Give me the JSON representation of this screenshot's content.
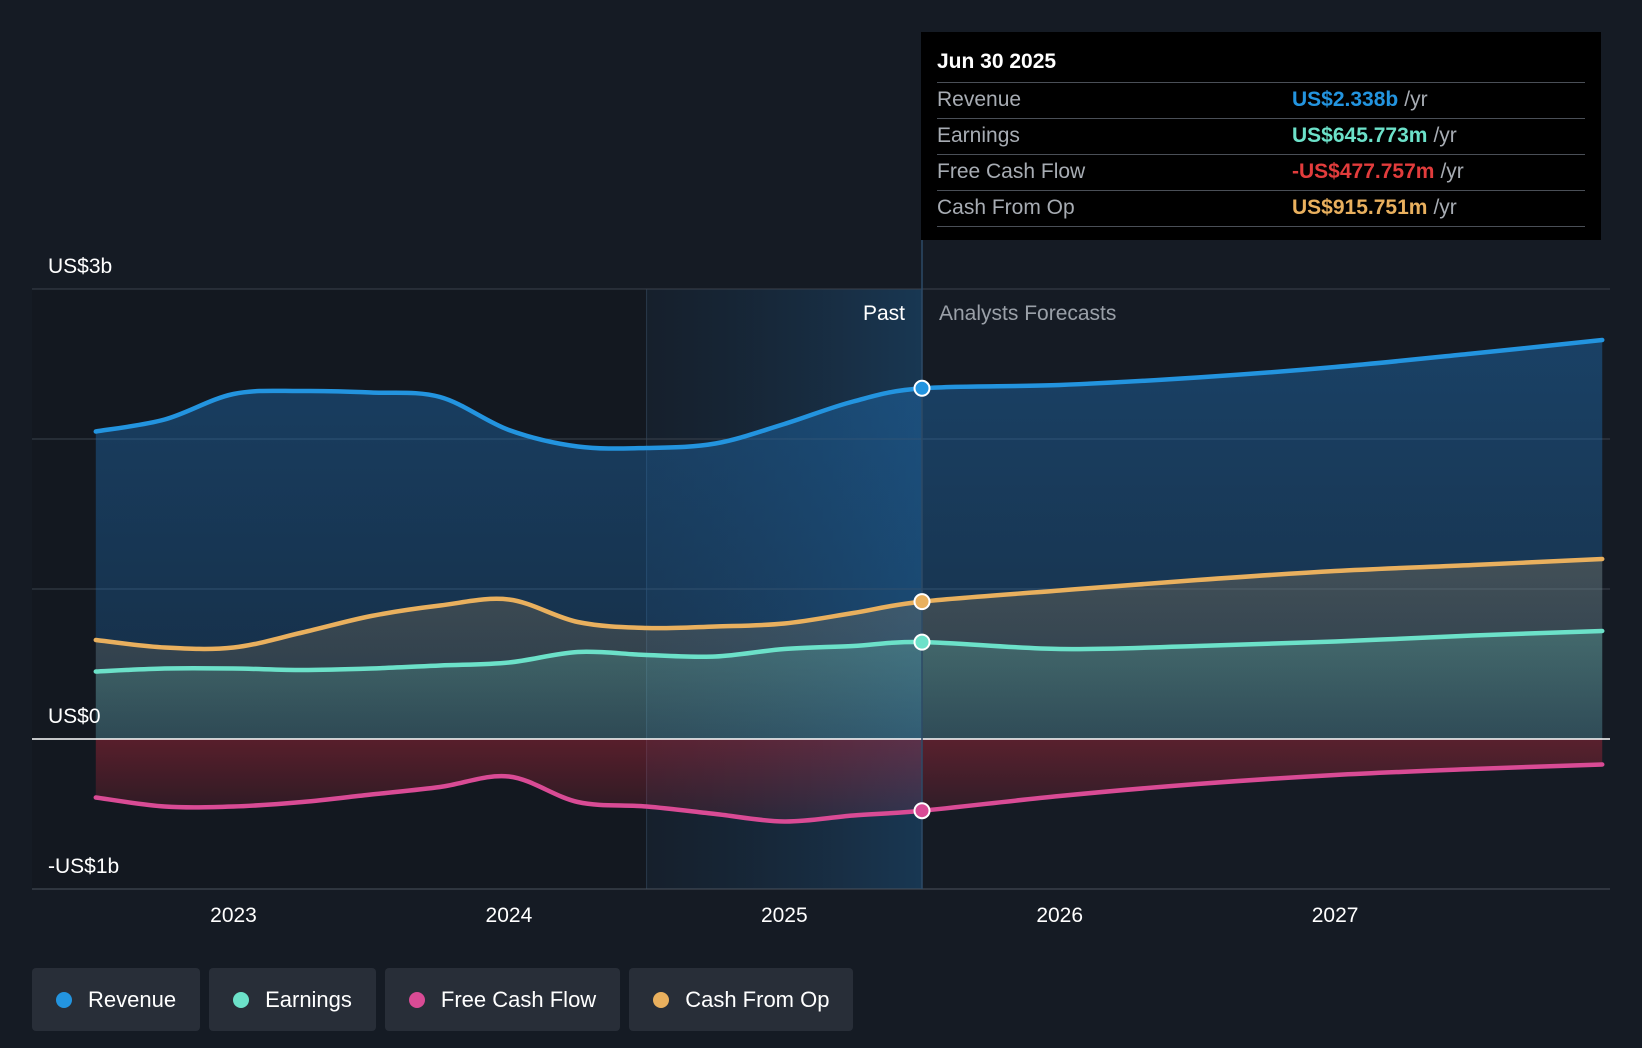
{
  "chart_data": {
    "type": "area",
    "x_unit": "year",
    "y_unit": "US$ billions",
    "ylim": [
      -1,
      3
    ],
    "xlim": [
      2022.5,
      2027.97
    ],
    "y_tick_values": [
      3,
      0,
      -1
    ],
    "y_tick_labels": [
      "US$3b",
      "US$0",
      "-US$1b"
    ],
    "x_ticks": [
      {
        "value": 2023,
        "label": "2023"
      },
      {
        "value": 2024,
        "label": "2024"
      },
      {
        "value": 2025,
        "label": "2025"
      },
      {
        "value": 2026,
        "label": "2026"
      },
      {
        "value": 2027,
        "label": "2027"
      }
    ],
    "past_label": "Past",
    "forecast_label": "Analysts Forecasts",
    "divider_x": 2025.5,
    "highlight_start_x": 2024.5,
    "grid": true,
    "legend_position": "bottom",
    "series": [
      {
        "name": "Revenue",
        "color": "#2394df",
        "points": [
          [
            2022.5,
            2.05
          ],
          [
            2022.75,
            2.13
          ],
          [
            2023.0,
            2.3
          ],
          [
            2023.25,
            2.32
          ],
          [
            2023.5,
            2.31
          ],
          [
            2023.75,
            2.28
          ],
          [
            2024.0,
            2.06
          ],
          [
            2024.25,
            1.95
          ],
          [
            2024.5,
            1.94
          ],
          [
            2024.75,
            1.97
          ],
          [
            2025.0,
            2.1
          ],
          [
            2025.25,
            2.25
          ],
          [
            2025.5,
            2.338
          ],
          [
            2026.0,
            2.36
          ],
          [
            2026.5,
            2.41
          ],
          [
            2027.0,
            2.48
          ],
          [
            2027.5,
            2.57
          ],
          [
            2027.97,
            2.66
          ]
        ]
      },
      {
        "name": "Earnings",
        "color": "#6ce1c9",
        "points": [
          [
            2022.5,
            0.45
          ],
          [
            2022.75,
            0.47
          ],
          [
            2023.0,
            0.47
          ],
          [
            2023.25,
            0.46
          ],
          [
            2023.5,
            0.47
          ],
          [
            2023.75,
            0.49
          ],
          [
            2024.0,
            0.51
          ],
          [
            2024.25,
            0.58
          ],
          [
            2024.5,
            0.56
          ],
          [
            2024.75,
            0.55
          ],
          [
            2025.0,
            0.6
          ],
          [
            2025.25,
            0.62
          ],
          [
            2025.5,
            0.646
          ],
          [
            2026.0,
            0.6
          ],
          [
            2026.5,
            0.62
          ],
          [
            2027.0,
            0.65
          ],
          [
            2027.5,
            0.69
          ],
          [
            2027.97,
            0.72
          ]
        ]
      },
      {
        "name": "Free Cash Flow",
        "color": "#d94b95",
        "points": [
          [
            2022.5,
            -0.39
          ],
          [
            2022.75,
            -0.45
          ],
          [
            2023.0,
            -0.45
          ],
          [
            2023.25,
            -0.42
          ],
          [
            2023.5,
            -0.37
          ],
          [
            2023.75,
            -0.32
          ],
          [
            2024.0,
            -0.25
          ],
          [
            2024.25,
            -0.42
          ],
          [
            2024.5,
            -0.45
          ],
          [
            2024.75,
            -0.5
          ],
          [
            2025.0,
            -0.55
          ],
          [
            2025.25,
            -0.51
          ],
          [
            2025.5,
            -0.478
          ],
          [
            2026.0,
            -0.38
          ],
          [
            2026.5,
            -0.3
          ],
          [
            2027.0,
            -0.24
          ],
          [
            2027.5,
            -0.2
          ],
          [
            2027.97,
            -0.17
          ]
        ]
      },
      {
        "name": "Cash From Op",
        "color": "#e9b05e",
        "points": [
          [
            2022.5,
            0.66
          ],
          [
            2022.75,
            0.61
          ],
          [
            2023.0,
            0.61
          ],
          [
            2023.25,
            0.71
          ],
          [
            2023.5,
            0.82
          ],
          [
            2023.75,
            0.89
          ],
          [
            2024.0,
            0.93
          ],
          [
            2024.25,
            0.78
          ],
          [
            2024.5,
            0.74
          ],
          [
            2024.75,
            0.75
          ],
          [
            2025.0,
            0.77
          ],
          [
            2025.25,
            0.84
          ],
          [
            2025.5,
            0.916
          ],
          [
            2026.0,
            0.99
          ],
          [
            2026.5,
            1.06
          ],
          [
            2027.0,
            1.12
          ],
          [
            2027.5,
            1.16
          ],
          [
            2027.97,
            1.2
          ]
        ]
      }
    ]
  },
  "tooltip": {
    "date": "Jun 30 2025",
    "rows": [
      {
        "label": "Revenue",
        "value": "US$2.338b",
        "unit": "/yr",
        "color": "#2394df"
      },
      {
        "label": "Earnings",
        "value": "US$645.773m",
        "unit": "/yr",
        "color": "#6ce1c9"
      },
      {
        "label": "Free Cash Flow",
        "value": "-US$477.757m",
        "unit": "/yr",
        "color": "#e23c3c"
      },
      {
        "label": "Cash From Op",
        "value": "US$915.751m",
        "unit": "/yr",
        "color": "#e9b05e"
      }
    ]
  },
  "legend": [
    {
      "label": "Revenue",
      "color": "#2394df"
    },
    {
      "label": "Earnings",
      "color": "#6ce1c9"
    },
    {
      "label": "Free Cash Flow",
      "color": "#d94b95"
    },
    {
      "label": "Cash From Op",
      "color": "#e9b05e"
    }
  ]
}
